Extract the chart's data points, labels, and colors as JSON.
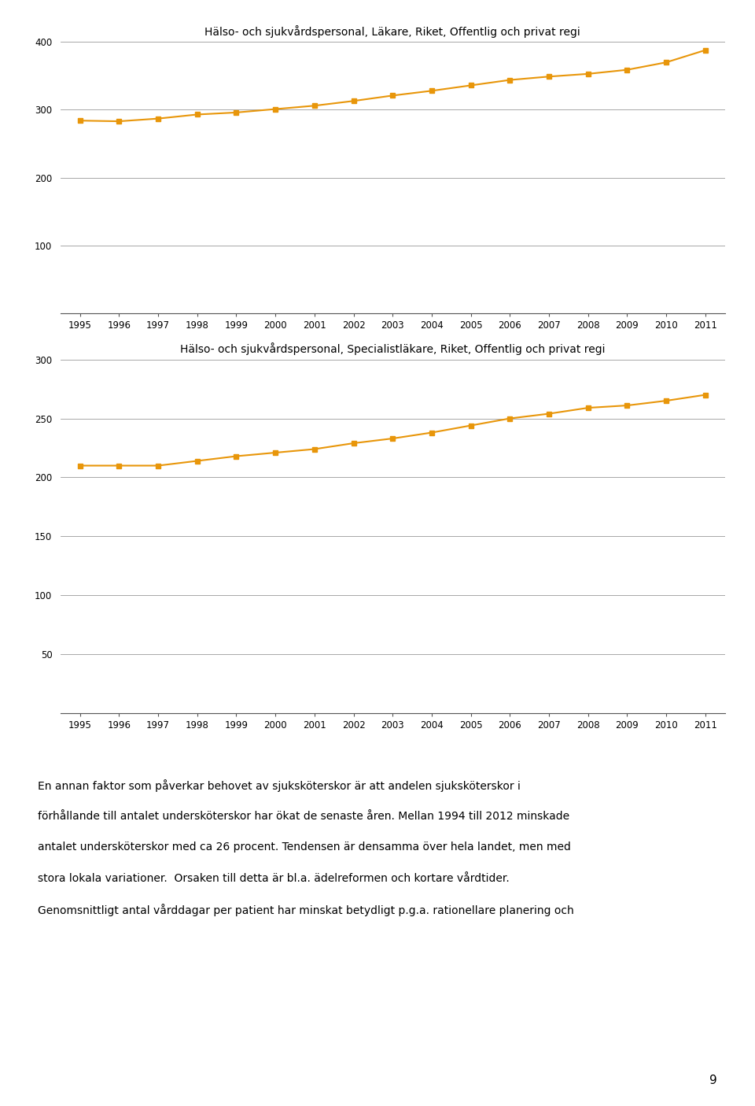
{
  "chart1": {
    "title": "Hälso- och sjukvårdspersonal, Läkare, Riket, Offentlig och privat regi",
    "years": [
      1995,
      1996,
      1997,
      1998,
      1999,
      2000,
      2001,
      2002,
      2003,
      2004,
      2005,
      2006,
      2007,
      2008,
      2009,
      2010,
      2011
    ],
    "values": [
      284,
      283,
      287,
      293,
      296,
      301,
      306,
      313,
      321,
      328,
      336,
      344,
      349,
      353,
      359,
      370,
      388
    ],
    "ylim": [
      0,
      400
    ],
    "yticks": [
      0,
      100,
      200,
      300,
      400
    ],
    "line_color": "#E8960A",
    "marker": "s",
    "markersize": 4
  },
  "chart2": {
    "title": "Hälso- och sjukvårdspersonal, Specialistläkare, Riket, Offentlig och privat regi",
    "years": [
      1995,
      1996,
      1997,
      1998,
      1999,
      2000,
      2001,
      2002,
      2003,
      2004,
      2005,
      2006,
      2007,
      2008,
      2009,
      2010,
      2011
    ],
    "values": [
      210,
      210,
      210,
      214,
      218,
      221,
      224,
      229,
      233,
      238,
      244,
      250,
      254,
      259,
      261,
      265,
      270
    ],
    "ylim": [
      0,
      300
    ],
    "yticks": [
      0,
      50,
      100,
      150,
      200,
      250,
      300
    ],
    "line_color": "#E8960A",
    "marker": "s",
    "markersize": 4
  },
  "text_lines": [
    "En annan faktor som påverkar behovet av sjuksköterskor är att andelen sjuksköterskor i",
    "förhållande till antalet undersköterskor har ökat de senaste åren. Mellan 1994 till 2012 minskade",
    "antalet undersköterskor med ca 26 procent. Tendensen är densamma över hela landet, men med",
    "stora lokala variationer.  Orsaken till detta är bl.a. ädelreformen och kortare vårdtider.",
    "Genomsnittligt antal vårddagar per patient har minskat betydligt p.g.a. rationellare planering och"
  ],
  "page_number": "9",
  "background_color": "#FFFFFF",
  "text_color": "#000000",
  "grid_color": "#999999",
  "spine_color": "#555555"
}
